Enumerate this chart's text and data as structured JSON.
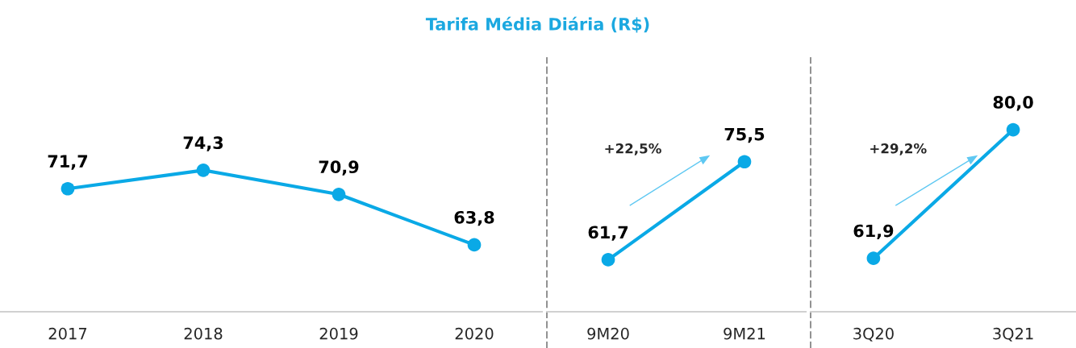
{
  "chart_data": [
    {
      "type": "line",
      "title": "Tarifa Média Diária (R$)",
      "categories": [
        "2017",
        "2018",
        "2019",
        "2020"
      ],
      "marker": "circle",
      "series": [
        {
          "color": "#0aa9e6",
          "values": [
            71.7,
            74.3,
            70.9,
            63.8
          ],
          "value_labels": [
            "71,7",
            "74,3",
            "70,9",
            "63,8"
          ]
        }
      ]
    },
    {
      "type": "line",
      "categories": [
        "9M20",
        "9M21"
      ],
      "marker": "circle",
      "annotations": [
        "+22,5%"
      ],
      "series": [
        {
          "color": "#0aa9e6",
          "values": [
            61.7,
            75.5
          ],
          "value_labels": [
            "61,7",
            "75,5"
          ]
        }
      ]
    },
    {
      "type": "line",
      "categories": [
        "3Q20",
        "3Q21"
      ],
      "marker": "circle",
      "annotations": [
        "+29,2%"
      ],
      "series": [
        {
          "color": "#0aa9e6",
          "values": [
            61.9,
            80.0
          ],
          "value_labels": [
            "61,9",
            "80,0"
          ]
        }
      ]
    }
  ]
}
